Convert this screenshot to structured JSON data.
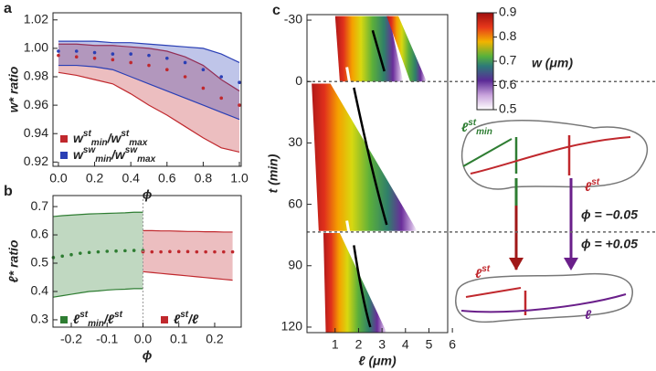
{
  "chart_data": [
    {
      "type": "line",
      "panel_label": "a",
      "xlabel": "ϕ",
      "ylabel": "w* ratio",
      "xlim": [
        -0.03,
        1.01
      ],
      "ylim": [
        0.917,
        1.025
      ],
      "xticks": [
        {
          "value": 0,
          "label": "0.0"
        },
        0.2,
        0.4,
        0.6,
        0.8,
        {
          "value": 1,
          "label": "1.0"
        }
      ],
      "yticks": [
        0.92,
        0.94,
        0.96,
        0.98,
        {
          "value": 1,
          "label": "1.00"
        },
        1.02
      ],
      "series": [
        {
          "name": [
            {
              "text": "w",
              "sub": "min",
              "sup": "st"
            },
            {
              "text": "/w",
              "sub": "max",
              "sup": "st"
            }
          ],
          "color": "#c0282d",
          "x": [
            0,
            0.1,
            0.2,
            0.3,
            0.4,
            0.5,
            0.6,
            0.7,
            0.8,
            0.9,
            1.0
          ],
          "values": [
            0.995,
            0.994,
            0.993,
            0.992,
            0.99,
            0.988,
            0.985,
            0.98,
            0.972,
            0.965,
            0.96
          ],
          "lower": [
            0.983,
            0.981,
            0.978,
            0.975,
            0.968,
            0.96,
            0.953,
            0.945,
            0.937,
            0.93,
            0.927
          ],
          "upper": [
            1.003,
            1.003,
            1.002,
            1.002,
            1.001,
            1.0,
            0.998,
            0.994,
            0.988,
            0.978,
            0.97
          ]
        },
        {
          "name": [
            {
              "text": "w",
              "sub": "min",
              "sup": "sw"
            },
            {
              "text": "/w",
              "sub": "max",
              "sup": "sw"
            }
          ],
          "color": "#2a3fb5",
          "x": [
            0,
            0.1,
            0.2,
            0.3,
            0.4,
            0.5,
            0.6,
            0.7,
            0.8,
            0.9,
            1.0
          ],
          "values": [
            0.998,
            0.998,
            0.997,
            0.996,
            0.996,
            0.995,
            0.993,
            0.99,
            0.985,
            0.98,
            0.976
          ],
          "lower": [
            0.988,
            0.988,
            0.987,
            0.985,
            0.98,
            0.975,
            0.97,
            0.965,
            0.96,
            0.955,
            0.95
          ],
          "upper": [
            1.005,
            1.005,
            1.005,
            1.004,
            1.004,
            1.003,
            1.002,
            1.001,
            1.0,
            0.996,
            0.99
          ]
        }
      ]
    },
    {
      "type": "line",
      "panel_label": "b",
      "xlabel": "ϕ",
      "ylabel": "ℓ* ratio",
      "xlim": [
        -0.251,
        0.274
      ],
      "ylim": [
        0.274,
        0.739
      ],
      "xticks": [
        -0.2,
        -0.1,
        {
          "value": 0,
          "label": "0.0"
        },
        0.1,
        0.2
      ],
      "yticks": [
        0.3,
        0.4,
        0.5,
        0.6,
        0.7
      ],
      "series": [
        {
          "name": [
            {
              "text": "ℓ",
              "sub": "min",
              "sup": "st"
            },
            {
              "text": "/ℓ",
              "sub": "",
              "sup": "st"
            }
          ],
          "color": "#2e7d32",
          "x": [
            -0.25,
            -0.225,
            -0.2,
            -0.175,
            -0.15,
            -0.125,
            -0.1,
            -0.075,
            -0.05,
            -0.025,
            0
          ],
          "values": [
            0.52,
            0.525,
            0.53,
            0.535,
            0.538,
            0.54,
            0.542,
            0.543,
            0.544,
            0.545,
            0.545
          ],
          "lower": [
            0.38,
            0.385,
            0.39,
            0.395,
            0.4,
            0.402,
            0.405,
            0.407,
            0.408,
            0.41,
            0.41
          ],
          "upper": [
            0.665,
            0.668,
            0.67,
            0.672,
            0.674,
            0.675,
            0.676,
            0.677,
            0.678,
            0.68,
            0.68
          ]
        },
        {
          "name": [
            {
              "text": "ℓ",
              "sub": "",
              "sup": "st"
            },
            {
              "text": "/ℓ",
              "sub": "",
              "sup": ""
            }
          ],
          "color": "#c0282d",
          "x": [
            0,
            0.025,
            0.05,
            0.075,
            0.1,
            0.125,
            0.15,
            0.175,
            0.2,
            0.225,
            0.25
          ],
          "values": [
            0.54,
            0.54,
            0.54,
            0.541,
            0.541,
            0.541,
            0.54,
            0.54,
            0.54,
            0.54,
            0.54
          ],
          "lower": [
            0.47,
            0.467,
            0.464,
            0.461,
            0.458,
            0.455,
            0.452,
            0.449,
            0.446,
            0.443,
            0.44
          ],
          "upper": [
            0.615,
            0.615,
            0.614,
            0.614,
            0.613,
            0.612,
            0.612,
            0.611,
            0.611,
            0.61,
            0.61
          ]
        }
      ]
    },
    {
      "type": "heatmap",
      "panel_label": "c",
      "xlabel": "ℓ (μm)",
      "ylabel": "t (min)",
      "xlim": [
        -0.2,
        5.8
      ],
      "ylim": [
        -32.7,
        122.7
      ],
      "xticks": [
        1,
        2,
        3,
        4,
        5,
        6
      ],
      "yticks": [
        -30,
        0,
        30,
        60,
        90,
        120
      ],
      "colorbar_label": "w (μm)",
      "clim": [
        0.5,
        0.9
      ],
      "cticks": [
        0.5,
        0.6,
        0.7,
        0.8,
        0.9
      ],
      "annotations": [
        "ϕ = −0.05",
        "ϕ = +0.05"
      ],
      "diagram_labels": [
        {
          "text": "ℓ",
          "sub": "min",
          "sup": "st"
        },
        {
          "text": "ℓ",
          "sub": "",
          "sup": "st"
        },
        {
          "text": "ℓ",
          "sub": "",
          "sup": "st"
        },
        {
          "text": "ℓ",
          "sub": "",
          "sup": ""
        }
      ]
    }
  ]
}
